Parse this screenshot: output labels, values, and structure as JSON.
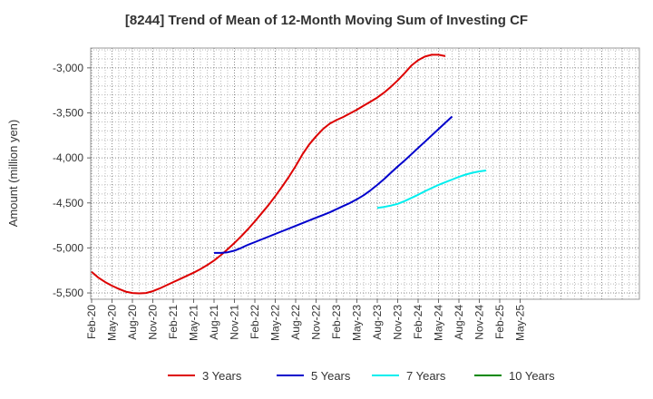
{
  "chart_data": {
    "type": "line",
    "title": "[8244]  Trend of Mean of 12-Month Moving Sum of Investing CF",
    "xlabel": "",
    "ylabel": "Amount (million yen)",
    "ylim": [
      -5570,
      -2780
    ],
    "yticks": [
      -3000,
      -3500,
      -4000,
      -4500,
      -5000,
      -5500
    ],
    "ytick_labels": [
      "-3,000",
      "-3,500",
      "-4,000",
      "-4,500",
      "-5,000",
      "-5,500"
    ],
    "x_tick_labels": [
      "Feb-20",
      "May-20",
      "Aug-20",
      "Nov-20",
      "Feb-21",
      "May-21",
      "Aug-21",
      "Nov-21",
      "Feb-22",
      "May-22",
      "Aug-22",
      "Nov-22",
      "Feb-23",
      "May-23",
      "Aug-23",
      "Nov-23",
      "Feb-24",
      "May-24",
      "Aug-24",
      "Nov-24",
      "Feb-25",
      "May-25"
    ],
    "x_start": "Feb-20",
    "grid": true,
    "legend_position": "bottom",
    "series": [
      {
        "name": "3 Years",
        "color": "#dd0000",
        "start_index": 0,
        "values": [
          -5265,
          -5330,
          -5380,
          -5420,
          -5455,
          -5485,
          -5500,
          -5505,
          -5500,
          -5480,
          -5450,
          -5415,
          -5380,
          -5345,
          -5310,
          -5275,
          -5235,
          -5190,
          -5140,
          -5080,
          -5015,
          -4945,
          -4870,
          -4790,
          -4705,
          -4615,
          -4525,
          -4425,
          -4320,
          -4210,
          -4090,
          -3960,
          -3850,
          -3760,
          -3680,
          -3620,
          -3580,
          -3545,
          -3505,
          -3465,
          -3420,
          -3375,
          -3330,
          -3275,
          -3210,
          -3140,
          -3060,
          -2975,
          -2915,
          -2875,
          -2855,
          -2855,
          -2870
        ]
      },
      {
        "name": "5 Years",
        "color": "#0000cc",
        "start_index": 18,
        "values": [
          -5055,
          -5055,
          -5048,
          -5030,
          -5000,
          -4965,
          -4935,
          -4905,
          -4875,
          -4845,
          -4815,
          -4785,
          -4755,
          -4725,
          -4695,
          -4665,
          -4635,
          -4605,
          -4570,
          -4535,
          -4500,
          -4460,
          -4415,
          -4360,
          -4300,
          -4235,
          -4165,
          -4095,
          -4030,
          -3960,
          -3890,
          -3820,
          -3750,
          -3680,
          -3610,
          -3540
        ]
      },
      {
        "name": "7 Years",
        "color": "#00eeee",
        "start_index": 42,
        "values": [
          -4555,
          -4545,
          -4530,
          -4510,
          -4480,
          -4445,
          -4410,
          -4370,
          -4335,
          -4300,
          -4270,
          -4240,
          -4210,
          -4185,
          -4165,
          -4150,
          -4140
        ]
      },
      {
        "name": "10 Years",
        "color": "#008800",
        "start_index": 0,
        "values": []
      }
    ]
  }
}
